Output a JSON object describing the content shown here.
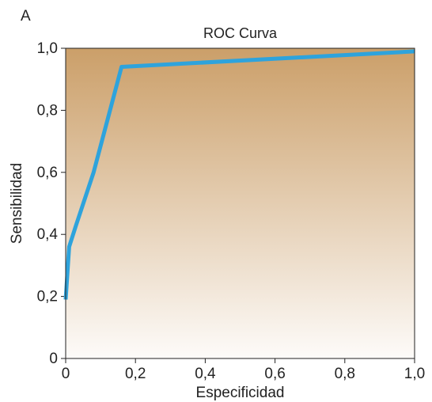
{
  "panel_label": "A",
  "chart_data": {
    "type": "line",
    "title": "ROC Curva",
    "xlabel": "Especificidad",
    "ylabel": "Sensibilidad",
    "xlim": [
      0,
      1
    ],
    "ylim": [
      0,
      1
    ],
    "x_ticks": [
      0,
      0.2,
      0.4,
      0.6,
      0.8,
      1.0
    ],
    "x_tick_labels": [
      "0",
      "0,2",
      "0,4",
      "0,6",
      "0,8",
      "1,0"
    ],
    "y_ticks": [
      0,
      0.2,
      0.4,
      0.6,
      0.8,
      1.0
    ],
    "y_tick_labels": [
      "0",
      "0,2",
      "0,4",
      "0,6",
      "0,8",
      "1,0"
    ],
    "grid": false,
    "background_gradient": [
      "#cb9f69",
      "#fdfbf9"
    ],
    "series": [
      {
        "color": "#2ea3dc",
        "x": [
          0.0,
          0.01,
          0.03,
          0.08,
          0.16,
          1.0
        ],
        "y": [
          0.19,
          0.36,
          0.43,
          0.6,
          0.94,
          0.99
        ]
      }
    ]
  }
}
